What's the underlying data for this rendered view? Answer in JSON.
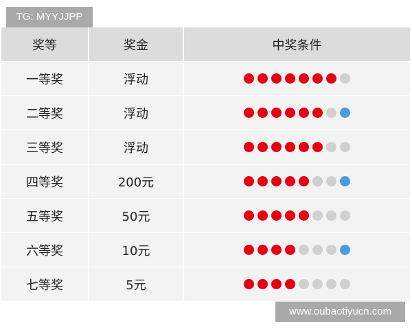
{
  "watermark_top": "TG: MYYJJPP",
  "watermark_bottom": "www.oubaotiyucn.com",
  "colors": {
    "red": "#e60012",
    "gray": "#d0d0d0",
    "blue": "#4a9be0"
  },
  "headers": [
    "奖等",
    "奖金",
    "中奖条件"
  ],
  "rows": [
    {
      "level": "一等奖",
      "prize": "浮动",
      "red": 7,
      "blue": 0
    },
    {
      "level": "二等奖",
      "prize": "浮动",
      "red": 6,
      "blue": 1
    },
    {
      "level": "三等奖",
      "prize": "浮动",
      "red": 6,
      "blue": 0
    },
    {
      "level": "四等奖",
      "prize": "200元",
      "red": 5,
      "blue": 1
    },
    {
      "level": "五等奖",
      "prize": "50元",
      "red": 5,
      "blue": 0
    },
    {
      "level": "六等奖",
      "prize": "10元",
      "red": 4,
      "blue": 1
    },
    {
      "level": "七等奖",
      "prize": "5元",
      "red": 4,
      "blue": 0
    }
  ]
}
